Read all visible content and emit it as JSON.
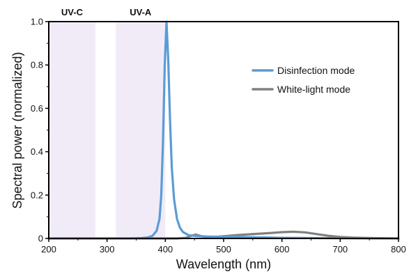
{
  "chart_data": {
    "type": "line",
    "xlabel": "Wavelength (nm)",
    "ylabel": "Spectral power (normalized)",
    "xlim": [
      200,
      800
    ],
    "ylim": [
      0,
      1.0
    ],
    "x_ticks": [
      "200",
      "300",
      "400",
      "500",
      "600",
      "700",
      "800"
    ],
    "y_ticks": [
      "0",
      "0.2",
      "0.4",
      "0.6",
      "0.8",
      "1.0"
    ],
    "grid": false,
    "legend_position": "upper-right",
    "bands": [
      {
        "label": "UV-C",
        "range": [
          200,
          280
        ],
        "color": "#f1ebf8"
      },
      {
        "label": "UV-A",
        "range": [
          315,
          400
        ],
        "color": "#f1ebf8"
      }
    ],
    "series": [
      {
        "name": "Disinfection mode",
        "color": "#5b9bd5",
        "points": [
          [
            200,
            0
          ],
          [
            340,
            0
          ],
          [
            360,
            0.002
          ],
          [
            370,
            0.005
          ],
          [
            378,
            0.012
          ],
          [
            385,
            0.035
          ],
          [
            390,
            0.09
          ],
          [
            393,
            0.2
          ],
          [
            396,
            0.45
          ],
          [
            399,
            0.8
          ],
          [
            402,
            1.0
          ],
          [
            405,
            0.82
          ],
          [
            408,
            0.55
          ],
          [
            411,
            0.33
          ],
          [
            415,
            0.18
          ],
          [
            420,
            0.09
          ],
          [
            425,
            0.05
          ],
          [
            430,
            0.03
          ],
          [
            440,
            0.015
          ],
          [
            450,
            0.012
          ],
          [
            460,
            0.01
          ],
          [
            480,
            0.008
          ],
          [
            500,
            0.008
          ],
          [
            520,
            0.008
          ],
          [
            540,
            0.006
          ],
          [
            560,
            0.005
          ],
          [
            580,
            0.004
          ],
          [
            600,
            0.003
          ],
          [
            650,
            0.002
          ],
          [
            700,
            0.001
          ],
          [
            750,
            0.0005
          ],
          [
            800,
            0
          ]
        ]
      },
      {
        "name": "White-light mode",
        "color": "#808080",
        "points": [
          [
            200,
            0
          ],
          [
            420,
            0
          ],
          [
            435,
            0.003
          ],
          [
            445,
            0.012
          ],
          [
            452,
            0.018
          ],
          [
            460,
            0.012
          ],
          [
            470,
            0.006
          ],
          [
            480,
            0.006
          ],
          [
            500,
            0.01
          ],
          [
            520,
            0.015
          ],
          [
            550,
            0.02
          ],
          [
            580,
            0.025
          ],
          [
            600,
            0.029
          ],
          [
            620,
            0.031
          ],
          [
            640,
            0.028
          ],
          [
            660,
            0.02
          ],
          [
            680,
            0.012
          ],
          [
            700,
            0.007
          ],
          [
            720,
            0.004
          ],
          [
            750,
            0.002
          ],
          [
            780,
            0.001
          ],
          [
            800,
            0
          ]
        ]
      }
    ]
  }
}
